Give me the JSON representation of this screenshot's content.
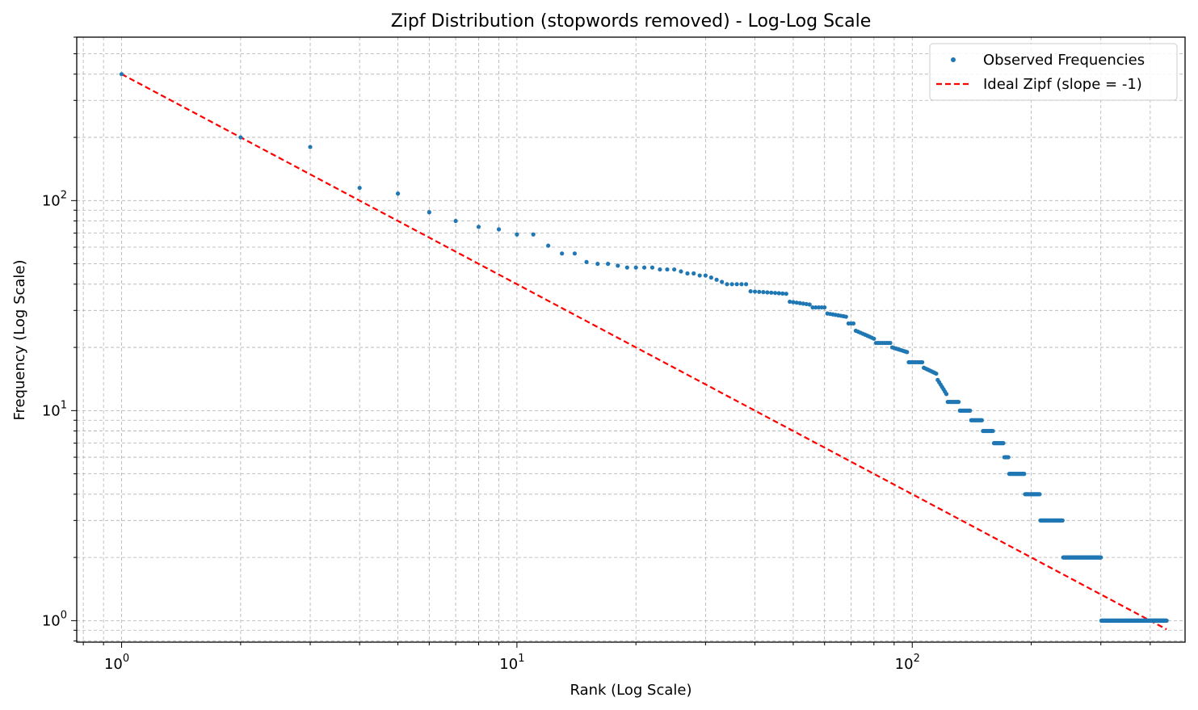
{
  "chart_data": {
    "type": "scatter",
    "title": "Zipf Distribution (stopwords removed) - Log-Log Scale",
    "xlabel": "Rank (Log Scale)",
    "ylabel": "Frequency (Log Scale)",
    "xscale": "log",
    "yscale": "log",
    "xlim": [
      0.77,
      490
    ],
    "ylim": [
      0.79,
      600
    ],
    "grid": true,
    "legend_position": "top-right",
    "x_ticks": [
      {
        "base": "10",
        "exp": "0",
        "value": 1
      },
      {
        "base": "10",
        "exp": "1",
        "value": 10
      },
      {
        "base": "10",
        "exp": "2",
        "value": 100
      }
    ],
    "y_ticks": [
      {
        "base": "10",
        "exp": "0",
        "value": 1
      },
      {
        "base": "10",
        "exp": "1",
        "value": 10
      },
      {
        "base": "10",
        "exp": "2",
        "value": 100
      }
    ],
    "series": [
      {
        "name": "Observed Frequencies",
        "kind": "points",
        "color": "#1f77b4",
        "x": [
          1,
          2,
          3,
          4,
          5,
          6,
          7,
          8,
          9,
          10,
          11,
          12,
          13,
          14,
          15,
          16,
          17,
          18,
          19,
          20,
          21,
          22,
          23,
          24,
          25,
          26,
          27,
          28,
          29,
          30
        ],
        "y": [
          400,
          200,
          180,
          115,
          108,
          88,
          80,
          75,
          73,
          69,
          69,
          61,
          56,
          56,
          51,
          50,
          50,
          49,
          48,
          48,
          48,
          48,
          47,
          47,
          47,
          46,
          45,
          45,
          44,
          44
        ],
        "segments": [
          {
            "x_start": 31,
            "x_end": 33,
            "y_start": 43,
            "y_end": 41
          },
          {
            "x_start": 34,
            "x_end": 38,
            "y": 40
          },
          {
            "x_start": 39,
            "x_end": 48,
            "y_start": 37,
            "y_end": 36
          },
          {
            "x_start": 49,
            "x_end": 55,
            "y_start": 33,
            "y_end": 32
          },
          {
            "x_start": 56,
            "x_end": 60,
            "y": 31
          },
          {
            "x_start": 61,
            "x_end": 68,
            "y_start": 29,
            "y_end": 28
          },
          {
            "x_start": 69,
            "x_end": 71,
            "y": 26
          },
          {
            "x_start": 72,
            "x_end": 80,
            "y_start": 24,
            "y_end": 22
          },
          {
            "x_start": 81,
            "x_end": 88,
            "y": 21
          },
          {
            "x_start": 89,
            "x_end": 97,
            "y_start": 20,
            "y_end": 19
          },
          {
            "x_start": 98,
            "x_end": 106,
            "y": 17
          },
          {
            "x_start": 107,
            "x_end": 115,
            "y_start": 16,
            "y_end": 15
          },
          {
            "x_start": 116,
            "x_end": 122,
            "y_start": 14,
            "y_end": 12
          },
          {
            "x_start": 123,
            "x_end": 131,
            "y": 11
          },
          {
            "x_start": 132,
            "x_end": 140,
            "y": 10
          },
          {
            "x_start": 141,
            "x_end": 150,
            "y": 9
          },
          {
            "x_start": 151,
            "x_end": 160,
            "y": 8
          },
          {
            "x_start": 161,
            "x_end": 170,
            "y": 7
          },
          {
            "x_start": 171,
            "x_end": 175,
            "y": 6
          },
          {
            "x_start": 176,
            "x_end": 192,
            "y": 5
          },
          {
            "x_start": 193,
            "x_end": 210,
            "y": 4
          },
          {
            "x_start": 211,
            "x_end": 240,
            "y": 3
          },
          {
            "x_start": 241,
            "x_end": 300,
            "y": 2
          },
          {
            "x_start": 301,
            "x_end": 440,
            "y": 1
          }
        ]
      },
      {
        "name": "Ideal Zipf (slope = -1)",
        "kind": "dashed-line",
        "color": "#ff0000",
        "x": [
          1,
          440
        ],
        "y": [
          400,
          0.909
        ]
      }
    ]
  }
}
